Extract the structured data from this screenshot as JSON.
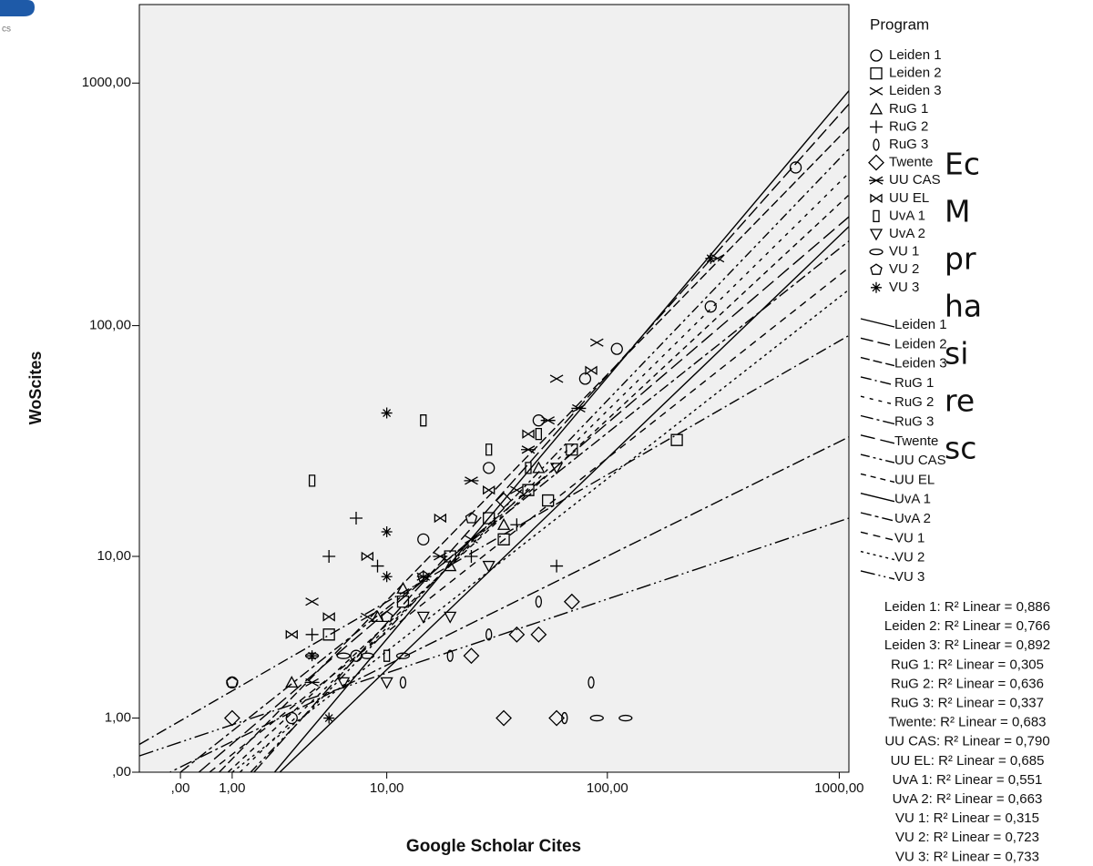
{
  "logo_text": "cs",
  "side_text": [
    "Ec",
    "M",
    "pr",
    "ha",
    "si",
    "re",
    "sc"
  ],
  "chart_data": {
    "type": "scatter",
    "x_label": "Google Scholar Cites",
    "y_label": "WoScites",
    "legend_title": "Program",
    "color": "#000000",
    "background": "#f0f0f0",
    "xscale": "log-offset",
    "yscale": "log-offset",
    "xlim": [
      -0.5,
      1100
    ],
    "ylim": [
      0,
      2100
    ],
    "xticks": [
      {
        "value": 0,
        "label": ",00"
      },
      {
        "value": 1,
        "label": "1,00"
      },
      {
        "value": 10,
        "label": "10,00"
      },
      {
        "value": 100,
        "label": "100,00"
      },
      {
        "value": 1000,
        "label": "1000,00"
      }
    ],
    "yticks": [
      {
        "value": 0,
        "label": ",00"
      },
      {
        "value": 1,
        "label": "1,00"
      },
      {
        "value": 10,
        "label": "10,00"
      },
      {
        "value": 100,
        "label": "100,00"
      },
      {
        "value": 1000,
        "label": "1000,00"
      }
    ],
    "series": [
      {
        "name": "Leiden 1",
        "marker": "circle",
        "x": [
          1,
          3,
          7,
          15,
          30,
          50,
          80,
          110,
          280,
          650
        ],
        "values": [
          2,
          1,
          3,
          12,
          25,
          40,
          60,
          80,
          120,
          450
        ]
      },
      {
        "name": "Leiden 2",
        "marker": "square",
        "x": [
          5,
          12,
          20,
          30,
          45,
          70,
          200,
          35,
          55
        ],
        "values": [
          4,
          6,
          10,
          15,
          20,
          30,
          33,
          12,
          18
        ]
      },
      {
        "name": "Leiden 3",
        "marker": "x",
        "x": [
          4,
          8,
          15,
          25,
          60,
          90,
          300,
          40
        ],
        "values": [
          6,
          5,
          8,
          12,
          60,
          85,
          190,
          20
        ]
      },
      {
        "name": "RuG 1",
        "marker": "triangle",
        "x": [
          3,
          9,
          12,
          20,
          35,
          50
        ],
        "values": [
          2,
          5,
          7,
          9,
          14,
          25
        ]
      },
      {
        "name": "RuG 2",
        "marker": "plus",
        "x": [
          5,
          7,
          4,
          9,
          15,
          25,
          40,
          60
        ],
        "values": [
          10,
          15,
          4,
          9,
          8,
          10,
          14,
          9
        ]
      },
      {
        "name": "RuG 3",
        "marker": "zero",
        "x": [
          12,
          20,
          30,
          50,
          65,
          85
        ],
        "values": [
          2,
          3,
          4,
          6,
          1,
          2
        ]
      },
      {
        "name": "Twente",
        "marker": "diamond",
        "x": [
          1,
          35,
          40,
          50,
          70,
          25,
          35,
          60
        ],
        "values": [
          1,
          1,
          4,
          4,
          6,
          3,
          18,
          1
        ]
      },
      {
        "name": "UU CAS",
        "marker": "star-x",
        "x": [
          4,
          18,
          25,
          45,
          55,
          75
        ],
        "values": [
          2,
          10,
          22,
          30,
          40,
          45
        ]
      },
      {
        "name": "UU EL",
        "marker": "bowtie",
        "x": [
          3,
          5,
          8,
          18,
          30,
          45,
          85
        ],
        "values": [
          4,
          5,
          10,
          15,
          20,
          35,
          65
        ]
      },
      {
        "name": "UvA 1",
        "marker": "rect-tall",
        "x": [
          4,
          10,
          15,
          30,
          50,
          45
        ],
        "values": [
          22,
          3,
          40,
          30,
          35,
          25
        ]
      },
      {
        "name": "UvA 2",
        "marker": "triangle-down",
        "x": [
          6,
          10,
          15,
          20,
          30,
          60
        ],
        "values": [
          2,
          2,
          5,
          5,
          9,
          25
        ]
      },
      {
        "name": "VU 1",
        "marker": "ellipse",
        "x": [
          4,
          6,
          8,
          12,
          90,
          120
        ],
        "values": [
          3,
          3,
          3,
          3,
          1,
          1
        ]
      },
      {
        "name": "VU 2",
        "marker": "pentagon",
        "x": [
          1,
          10,
          15,
          25
        ],
        "values": [
          2,
          5,
          8,
          15
        ]
      },
      {
        "name": "VU 3",
        "marker": "star",
        "x": [
          4,
          5,
          10,
          10,
          10,
          280
        ],
        "values": [
          3,
          1,
          43,
          13,
          8,
          190
        ]
      }
    ],
    "fit_lines": [
      {
        "name": "Leiden 1",
        "dash": "none",
        "x": [
          2.3,
          1100
        ],
        "values": [
          0,
          930
        ],
        "r2_label": "Leiden 1: R² Linear = 0,886"
      },
      {
        "name": "Leiden 2",
        "dash": "14 5",
        "x": [
          1.6,
          1100
        ],
        "values": [
          0,
          820
        ],
        "r2_label": "Leiden 2: R² Linear = 0,766"
      },
      {
        "name": "Leiden 3",
        "dash": "10 4",
        "x": [
          0.7,
          1100
        ],
        "values": [
          0,
          660
        ],
        "r2_label": "Leiden 3: R² Linear = 0,892"
      },
      {
        "name": "RuG 1",
        "dash": "12 4 2 4",
        "x": [
          -0.5,
          1100
        ],
        "values": [
          0.45,
          91
        ],
        "r2_label": "RuG 1: R² Linear = 0,305"
      },
      {
        "name": "RuG 2",
        "dash": "4 6",
        "x": [
          1.2,
          1100
        ],
        "values": [
          0,
          427
        ],
        "r2_label": "RuG 2: R² Linear = 0,636"
      },
      {
        "name": "RuG 3",
        "dash": "14 4 3 4",
        "x": [
          -0.5,
          1100
        ],
        "values": [
          -0.2,
          34
        ],
        "r2_label": "RuG 3: R² Linear = 0,337"
      },
      {
        "name": "Twente",
        "dash": "16 6",
        "x": [
          0.3,
          1100
        ],
        "values": [
          0,
          282
        ],
        "r2_label": "Twente: R² Linear = 0,683"
      },
      {
        "name": "UU CAS",
        "dash": "10 4 3 4 3 4",
        "x": [
          1.5,
          1100
        ],
        "values": [
          0,
          537
        ],
        "r2_label": "UU CAS: R² Linear = 0,790"
      },
      {
        "name": "UU EL",
        "dash": "6 5",
        "x": [
          0.9,
          1100
        ],
        "values": [
          0,
          347
        ],
        "r2_label": "UU EL: R² Linear = 0,685"
      },
      {
        "name": "UvA 1",
        "dash": "none",
        "x": [
          2.5,
          1100
        ],
        "values": [
          0,
          257
        ],
        "r2_label": "UvA 1: R² Linear = 0,551"
      },
      {
        "name": "UvA 2",
        "dash": "12 4 4 4",
        "x": [
          0,
          1100
        ],
        "values": [
          0,
          224
        ],
        "r2_label": "UvA 2: R² Linear = 0,663"
      },
      {
        "name": "VU 1",
        "dash": "8 6",
        "x": [
          0.5,
          1100
        ],
        "values": [
          0,
          174
        ],
        "r2_label": "VU 1: R² Linear = 0,315"
      },
      {
        "name": "VU 2",
        "dash": "3 4",
        "x": [
          1,
          1100
        ],
        "values": [
          0,
          141
        ],
        "r2_label": "VU 2: R² Linear = 0,723"
      },
      {
        "name": "VU 3",
        "dash": "16 4 2 4 2 4",
        "x": [
          -0.5,
          1100
        ],
        "values": [
          0.25,
          15
        ],
        "r2_label": "VU 3: R² Linear = 0,733"
      }
    ]
  }
}
